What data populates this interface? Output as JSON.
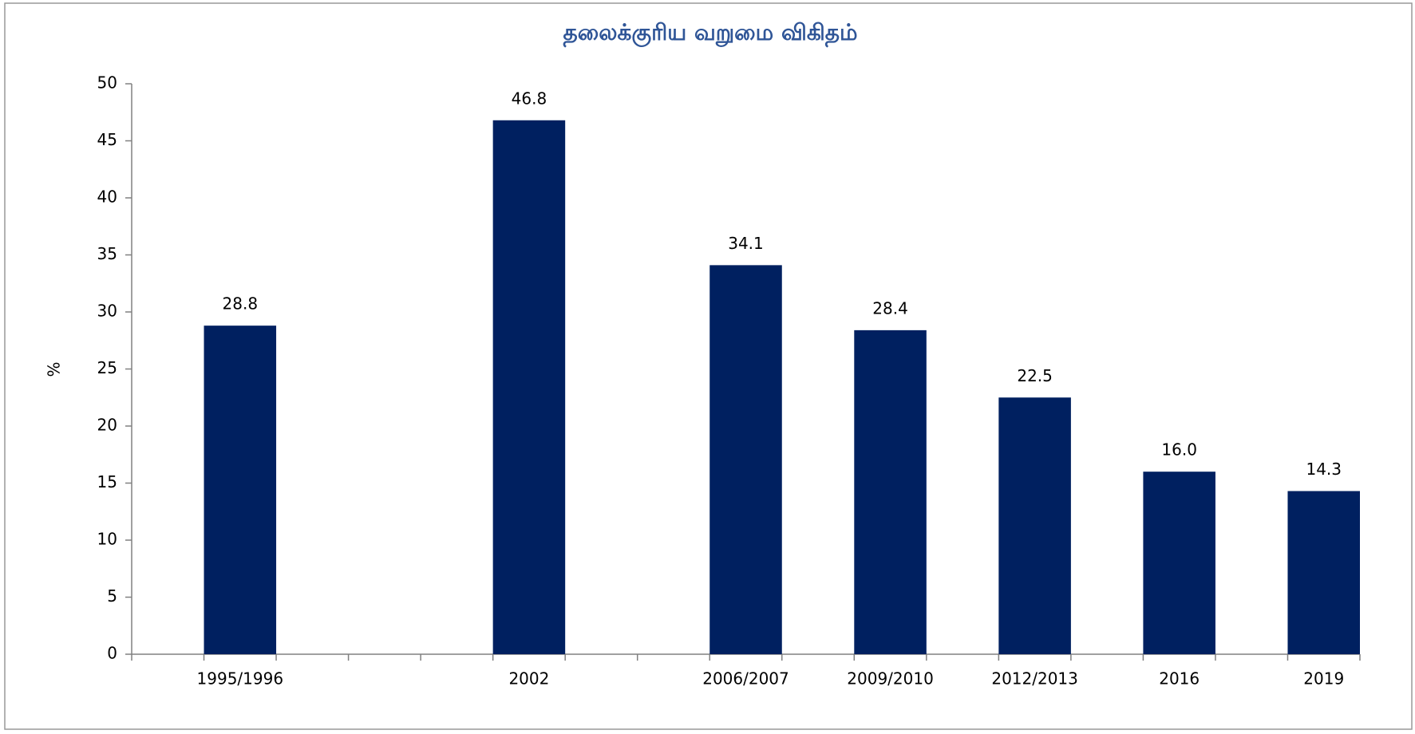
{
  "chart_data": {
    "type": "bar",
    "title": "தலைக்குரிய வறுமை விகிதம்",
    "y_label": "%",
    "categories": [
      null,
      "1995/1996",
      null,
      null,
      null,
      "2002",
      null,
      null,
      "2006/2007",
      null,
      "2009/2010",
      null,
      "2012/2013",
      null,
      "2016",
      null,
      "2019"
    ],
    "values": [
      null,
      28.8,
      null,
      null,
      null,
      46.8,
      null,
      null,
      34.1,
      null,
      28.4,
      null,
      22.5,
      null,
      16,
      null,
      14.3
    ],
    "value_labels": [
      null,
      "28.8",
      null,
      null,
      null,
      "46.8",
      null,
      null,
      "34.1",
      null,
      "28.4",
      null,
      "22.5",
      null,
      "16.0",
      null,
      "14.3"
    ],
    "color": "#002060",
    "ylim": [
      0,
      50
    ],
    "yticks": [
      0,
      5,
      10,
      15,
      20,
      25,
      30,
      35,
      40,
      45,
      50
    ],
    "grid": false
  }
}
